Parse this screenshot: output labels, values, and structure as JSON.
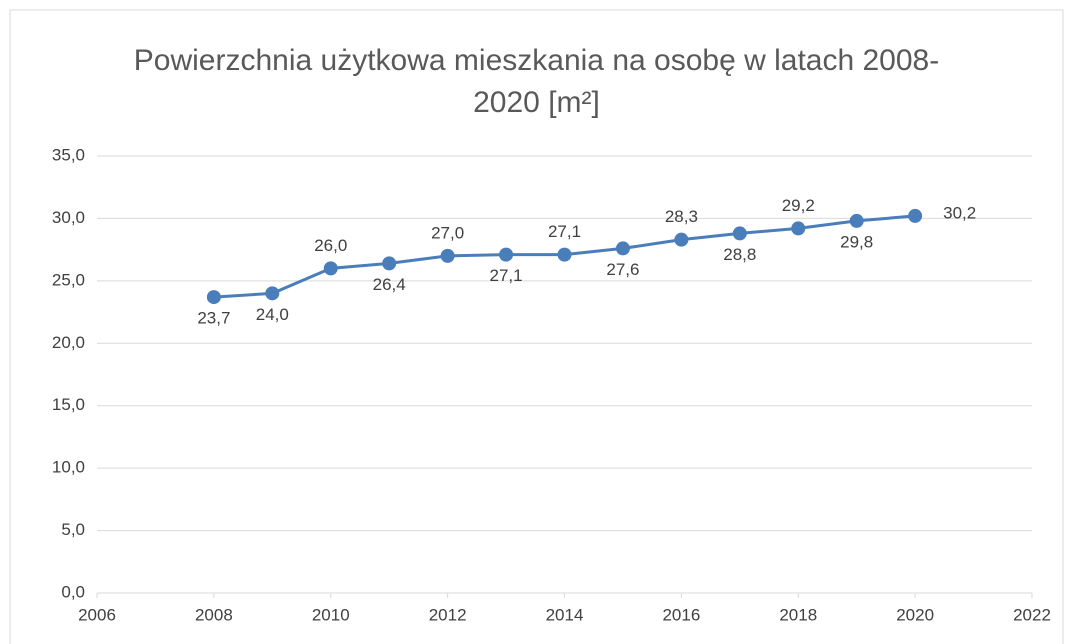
{
  "chart_data": {
    "type": "line",
    "title": "Powierzchnia użytkowa mieszkania na osobę w latach 2008-2020 [m²]",
    "x": [
      2008,
      2009,
      2010,
      2011,
      2012,
      2013,
      2014,
      2015,
      2016,
      2017,
      2018,
      2019,
      2020
    ],
    "series": [
      {
        "name": "Powierzchnia",
        "color": "#4a7ebb",
        "values": [
          23.7,
          24.0,
          26.0,
          26.4,
          27.0,
          27.1,
          27.1,
          27.6,
          28.3,
          28.8,
          29.2,
          29.8,
          30.2
        ],
        "value_labels": [
          "23,7",
          "24,0",
          "26,0",
          "26,4",
          "27,0",
          "27,1",
          "27,1",
          "27,6",
          "28,3",
          "28,8",
          "29,2",
          "29,8",
          "30,2"
        ]
      }
    ],
    "xlim": [
      2006,
      2022
    ],
    "xticks": [
      2006,
      2008,
      2010,
      2012,
      2014,
      2016,
      2018,
      2020,
      2022
    ],
    "ylim": [
      0,
      35
    ],
    "yticks": [
      {
        "value": 0,
        "label": "0,0"
      },
      {
        "value": 5,
        "label": "5,0"
      },
      {
        "value": 10,
        "label": "10,0"
      },
      {
        "value": 15,
        "label": "15,0"
      },
      {
        "value": 20,
        "label": "20,0"
      },
      {
        "value": 25,
        "label": "25,0"
      },
      {
        "value": 30,
        "label": "30,0"
      },
      {
        "value": 35,
        "label": "35,0"
      }
    ],
    "grid": true
  }
}
